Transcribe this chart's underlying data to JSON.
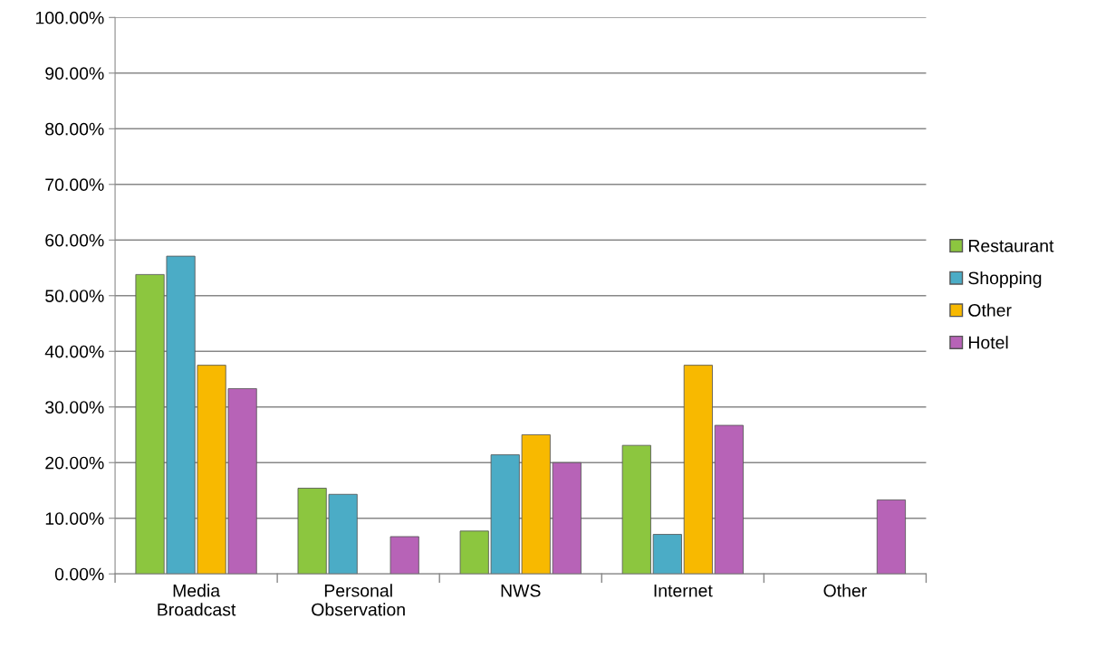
{
  "chart_data": {
    "type": "bar",
    "categories": [
      "Media\nBroadcast",
      "Personal\nObservation",
      "NWS",
      "Internet",
      "Other"
    ],
    "series": [
      {
        "name": "Restaurant",
        "color": "#8cc63f",
        "values": [
          53.8,
          15.4,
          7.7,
          23.1,
          0
        ]
      },
      {
        "name": "Shopping",
        "color": "#4bacc6",
        "values": [
          57.1,
          14.3,
          21.4,
          7.1,
          0
        ]
      },
      {
        "name": "Other",
        "color": "#f8b900",
        "values": [
          37.5,
          0,
          25,
          37.5,
          0
        ]
      },
      {
        "name": "Hotel",
        "color": "#b763b7",
        "values": [
          33.3,
          6.7,
          20,
          26.7,
          13.3
        ]
      }
    ],
    "ylim": [
      0,
      100
    ],
    "yticks": [
      {
        "value": 0,
        "label": "0.00%"
      },
      {
        "value": 10,
        "label": "10.00%"
      },
      {
        "value": 20,
        "label": "20.00%"
      },
      {
        "value": 30,
        "label": "30.00%"
      },
      {
        "value": 40,
        "label": "40.00%"
      },
      {
        "value": 50,
        "label": "50.00%"
      },
      {
        "value": 60,
        "label": "60.00%"
      },
      {
        "value": 70,
        "label": "70.00%"
      },
      {
        "value": 80,
        "label": "80.00%"
      },
      {
        "value": 90,
        "label": "90.00%"
      },
      {
        "value": 100,
        "label": "100.00%"
      }
    ],
    "grid": "y",
    "legend": "right"
  }
}
